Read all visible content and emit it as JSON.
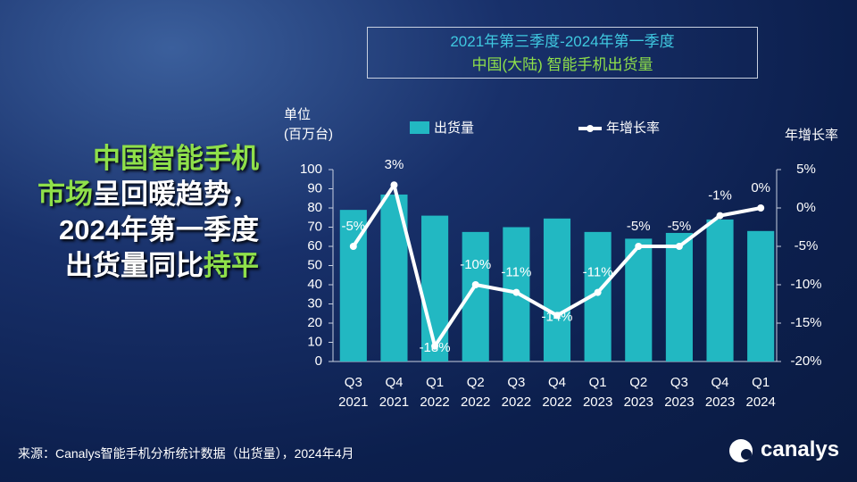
{
  "chart_data": {
    "type": "bar_line",
    "title": "2021年第三季度-2024年第一季度",
    "subtitle": "中国(大陆) 智能手机出货量",
    "headline": [
      [
        "中国智能手机"
      ],
      [
        "市场",
        "呈回暖趋势，"
      ],
      [
        "2024年第一季度"
      ],
      [
        "出货量同比",
        "持平"
      ]
    ],
    "y_label": "单位\n(百万台)",
    "y2_label": "年增长率",
    "categories": [
      "Q3\n2021",
      "Q4\n2021",
      "Q1\n2022",
      "Q2\n2022",
      "Q3\n2022",
      "Q4\n2022",
      "Q1\n2023",
      "Q2\n2023",
      "Q3\n2023",
      "Q4\n2023",
      "Q1\n2024"
    ],
    "series": [
      {
        "name": "出货量",
        "color": "#22b8c2",
        "values": [
          79,
          87,
          76,
          67.5,
          70,
          74.5,
          67.5,
          64,
          67,
          74,
          68
        ]
      },
      {
        "name": "年增长率",
        "color": "#ffffff",
        "axis": "y2",
        "values": [
          -5,
          3,
          -18,
          -10,
          -11,
          -14,
          -11,
          -5,
          -5,
          -1,
          0
        ],
        "value_labels": [
          "-5%",
          "3%",
          "-18%",
          "-10%",
          "-11%",
          "-14%",
          "-11%",
          "-5%",
          "-5%",
          "-1%",
          "0%"
        ]
      }
    ],
    "ylim": [
      0,
      100
    ],
    "yticks": [
      0,
      10,
      20,
      30,
      40,
      50,
      60,
      70,
      80,
      90,
      100
    ],
    "y2lim": [
      -20,
      5
    ],
    "y2ticks": [
      {
        "value": -20,
        "label": "-20%"
      },
      {
        "value": -15,
        "label": "-15%"
      },
      {
        "value": -10,
        "label": "-10%"
      },
      {
        "value": -5,
        "label": "-5%"
      },
      {
        "value": 0,
        "label": "0%"
      },
      {
        "value": 5,
        "label": "5%"
      }
    ],
    "source": "来源：Canalys智能手机分析统计数据（出货量），2024年4月",
    "logo": "canalys"
  }
}
